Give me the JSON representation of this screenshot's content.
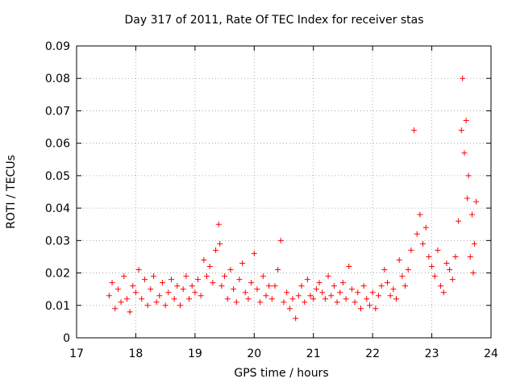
{
  "chart_data": {
    "type": "scatter",
    "title": "Day 317 of 2011, Rate Of TEC Index for receiver stas",
    "xlabel": "GPS time / hours",
    "ylabel": "ROTI / TECUs",
    "xlim": [
      17,
      24
    ],
    "ylim": [
      0,
      0.09
    ],
    "xticks": [
      17,
      18,
      19,
      20,
      21,
      22,
      23,
      24
    ],
    "yticks": [
      0,
      0.01,
      0.02,
      0.03,
      0.04,
      0.05,
      0.06,
      0.07,
      0.08,
      0.09
    ],
    "ytick_labels": [
      "0",
      "0.01",
      "0.02",
      "0.03",
      "0.04",
      "0.05",
      "0.06",
      "0.07",
      "0.08",
      "0.09"
    ],
    "grid": true,
    "marker": "+",
    "color": "#ff0000",
    "series": [
      {
        "name": "ROTI",
        "x": [
          17.55,
          17.6,
          17.65,
          17.7,
          17.75,
          17.8,
          17.85,
          17.9,
          17.95,
          18.0,
          18.05,
          18.1,
          18.15,
          18.2,
          18.25,
          18.3,
          18.35,
          18.4,
          18.45,
          18.5,
          18.55,
          18.6,
          18.65,
          18.7,
          18.75,
          18.8,
          18.85,
          18.9,
          18.95,
          19.0,
          19.05,
          19.1,
          19.15,
          19.2,
          19.25,
          19.3,
          19.35,
          19.4,
          19.42,
          19.45,
          19.5,
          19.55,
          19.6,
          19.65,
          19.7,
          19.75,
          19.8,
          19.85,
          19.9,
          19.95,
          20.0,
          20.05,
          20.1,
          20.15,
          20.2,
          20.25,
          20.3,
          20.35,
          20.4,
          20.45,
          20.5,
          20.55,
          20.6,
          20.65,
          20.7,
          20.75,
          20.8,
          20.85,
          20.9,
          20.95,
          21.0,
          21.05,
          21.1,
          21.15,
          21.2,
          21.25,
          21.3,
          21.35,
          21.4,
          21.45,
          21.5,
          21.55,
          21.6,
          21.65,
          21.7,
          21.75,
          21.8,
          21.85,
          21.9,
          21.95,
          22.0,
          22.05,
          22.1,
          22.15,
          22.2,
          22.25,
          22.3,
          22.35,
          22.4,
          22.45,
          22.5,
          22.55,
          22.6,
          22.65,
          22.7,
          22.75,
          22.8,
          22.85,
          22.9,
          22.95,
          23.0,
          23.05,
          23.1,
          23.15,
          23.2,
          23.25,
          23.3,
          23.35,
          23.4,
          23.45,
          23.5,
          23.52,
          23.55,
          23.58,
          23.6,
          23.62,
          23.65,
          23.68,
          23.7,
          23.72,
          23.75
        ],
        "y": [
          0.013,
          0.017,
          0.009,
          0.015,
          0.011,
          0.019,
          0.012,
          0.008,
          0.016,
          0.014,
          0.021,
          0.012,
          0.018,
          0.01,
          0.015,
          0.019,
          0.011,
          0.013,
          0.017,
          0.01,
          0.014,
          0.018,
          0.012,
          0.016,
          0.01,
          0.015,
          0.019,
          0.012,
          0.016,
          0.014,
          0.018,
          0.013,
          0.024,
          0.019,
          0.022,
          0.017,
          0.027,
          0.035,
          0.029,
          0.016,
          0.019,
          0.012,
          0.021,
          0.015,
          0.011,
          0.018,
          0.023,
          0.014,
          0.012,
          0.017,
          0.026,
          0.015,
          0.011,
          0.019,
          0.013,
          0.016,
          0.012,
          0.016,
          0.021,
          0.03,
          0.011,
          0.014,
          0.009,
          0.012,
          0.006,
          0.013,
          0.016,
          0.011,
          0.018,
          0.013,
          0.012,
          0.015,
          0.017,
          0.014,
          0.012,
          0.019,
          0.013,
          0.016,
          0.011,
          0.014,
          0.017,
          0.012,
          0.022,
          0.015,
          0.011,
          0.014,
          0.009,
          0.016,
          0.012,
          0.01,
          0.014,
          0.009,
          0.013,
          0.016,
          0.021,
          0.017,
          0.013,
          0.015,
          0.012,
          0.024,
          0.019,
          0.016,
          0.021,
          0.027,
          0.064,
          0.032,
          0.038,
          0.029,
          0.034,
          0.025,
          0.022,
          0.019,
          0.027,
          0.016,
          0.014,
          0.023,
          0.021,
          0.018,
          0.025,
          0.036,
          0.064,
          0.08,
          0.057,
          0.067,
          0.043,
          0.05,
          0.025,
          0.038,
          0.02,
          0.029,
          0.042
        ]
      }
    ]
  }
}
